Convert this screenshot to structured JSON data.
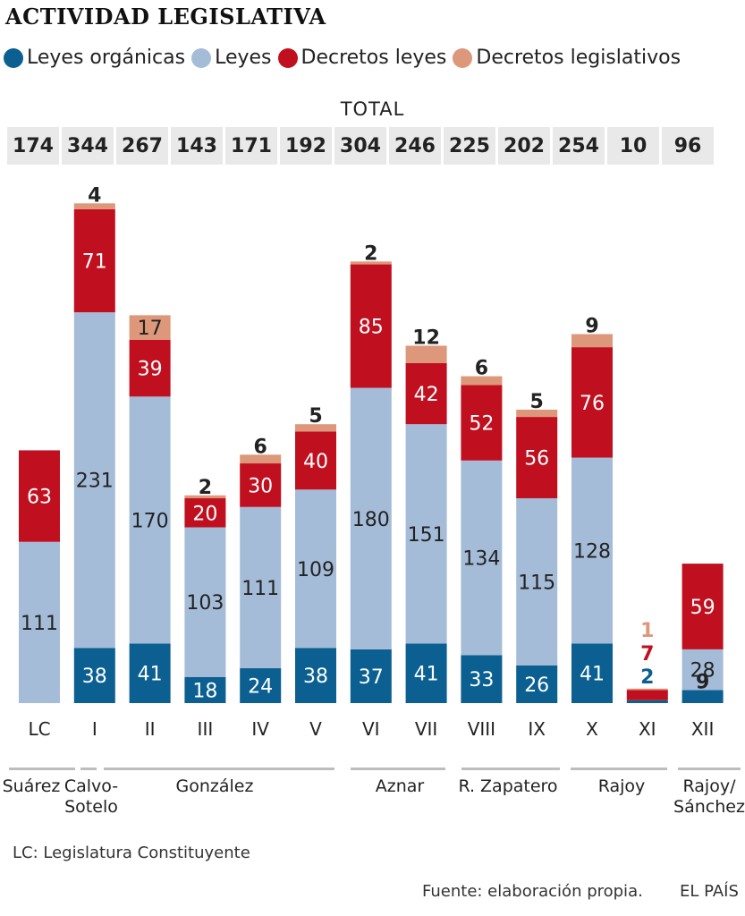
{
  "title": "ACTIVIDAD LEGISLATIVA",
  "total_label": "TOTAL",
  "note": "LC: Legislatura Constituyente",
  "source": "Fuente: elaboración propia.",
  "brand": "EL PAÍS",
  "colors": {
    "leyes_organicas": "#0b5f91",
    "leyes": "#a5bcd8",
    "decretos_leyes": "#c0101f",
    "decretos_legislativos": "#dd977a",
    "total_bg": "#e9e9e9"
  },
  "legend": [
    {
      "label": "Leyes orgánicas",
      "color": "#0b5f91"
    },
    {
      "label": "Leyes",
      "color": "#a5bcd8"
    },
    {
      "label": "Decretos leyes",
      "color": "#c0101f"
    },
    {
      "label": "Decretos legislativos",
      "color": "#dd977a"
    }
  ],
  "groups": [
    {
      "name": "Suárez",
      "label_lines": [
        "Suárez"
      ]
    },
    {
      "name": "Calvo-Sotelo",
      "label_lines": [
        "Calvo-",
        "Sotelo"
      ]
    },
    {
      "name": "González",
      "label_lines": [
        "González"
      ]
    },
    {
      "name": "Aznar",
      "label_lines": [
        "Aznar"
      ]
    },
    {
      "name": "R. Zapatero",
      "label_lines": [
        "R. Zapatero"
      ]
    },
    {
      "name": "Rajoy",
      "label_lines": [
        "Rajoy"
      ]
    },
    {
      "name": "Rajoy/Sánchez",
      "label_lines": [
        "Rajoy/",
        "Sánchez"
      ]
    }
  ],
  "chart_data": {
    "type": "bar",
    "stacked": true,
    "categories": [
      "LC",
      "I",
      "II",
      "III",
      "IV",
      "V",
      "VI",
      "VII",
      "VIII",
      "IX",
      "X",
      "XI",
      "XII"
    ],
    "totals": [
      174,
      344,
      267,
      143,
      171,
      192,
      304,
      246,
      225,
      202,
      254,
      10,
      96
    ],
    "series": [
      {
        "name": "Leyes orgánicas",
        "values": [
          0,
          38,
          41,
          18,
          24,
          38,
          37,
          41,
          33,
          26,
          41,
          2,
          9
        ]
      },
      {
        "name": "Leyes",
        "values": [
          111,
          231,
          170,
          103,
          111,
          109,
          180,
          151,
          134,
          115,
          128,
          0,
          28
        ]
      },
      {
        "name": "Decretos leyes",
        "values": [
          63,
          71,
          39,
          20,
          30,
          40,
          85,
          42,
          52,
          56,
          76,
          7,
          59
        ]
      },
      {
        "name": "Decretos legislativos",
        "values": [
          0,
          4,
          17,
          2,
          6,
          5,
          2,
          12,
          6,
          5,
          9,
          1,
          0
        ]
      }
    ],
    "xlabel": "",
    "ylabel": "",
    "grid": false,
    "legend_position": "top"
  }
}
